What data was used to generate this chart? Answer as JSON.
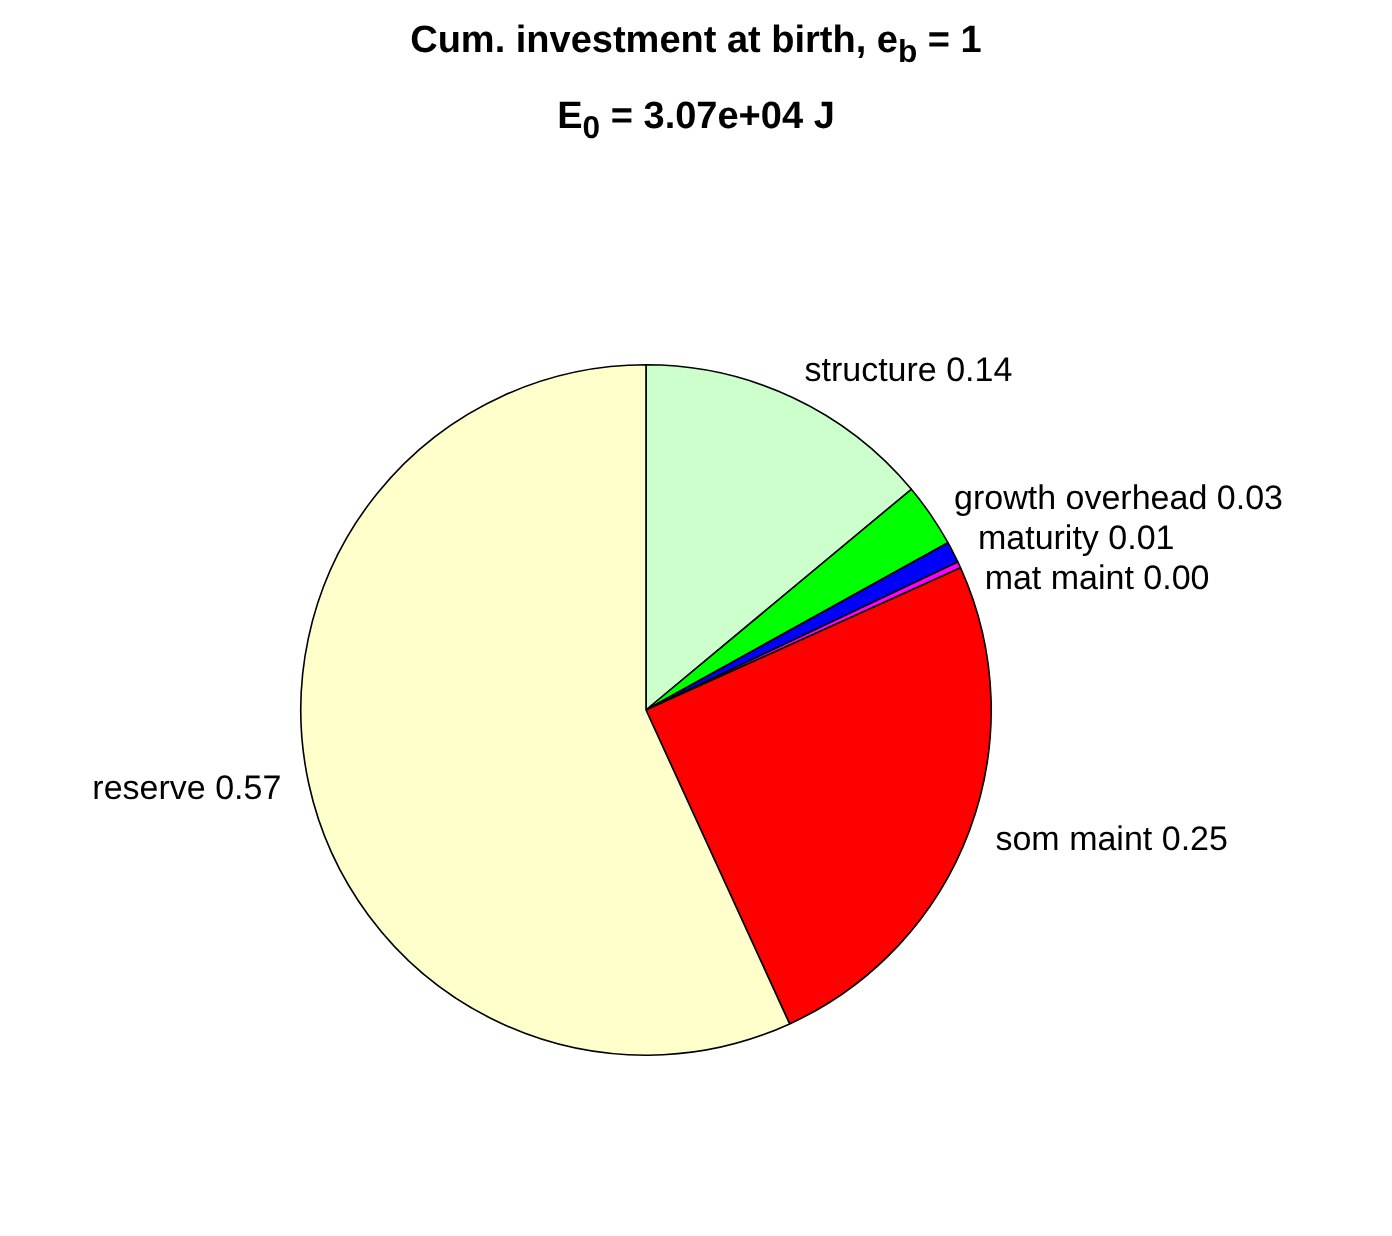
{
  "chart_data": {
    "type": "pie",
    "title": "Cum. investment at birth, e$_{b}$ = 1",
    "subtitle": "E$_{0}$ = 3.07e+04 J",
    "categories": [
      "structure",
      "growth overhead",
      "maturity",
      "mat maint",
      "som maint",
      "reserve"
    ],
    "values": [
      0.14,
      0.03,
      0.01,
      0.003,
      0.25,
      0.57
    ],
    "value_labels": [
      "0.14",
      "0.03",
      "0.01",
      "0.00",
      "0.25",
      "0.57"
    ],
    "colors": [
      "#ccffcc",
      "#00ff00",
      "#0000ff",
      "#ff00ff",
      "#ff0000",
      "#ffffcc"
    ],
    "legend": false
  }
}
